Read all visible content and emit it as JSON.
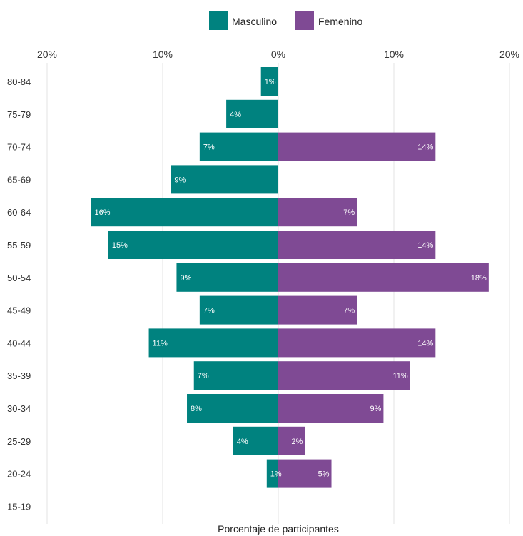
{
  "chart_data": {
    "type": "bar",
    "orientation": "horizontal-diverging",
    "xlabel": "Porcentaje de participantes",
    "xlim": [
      -20,
      20
    ],
    "x_ticks": [
      {
        "value": -20,
        "label": "20%"
      },
      {
        "value": -10,
        "label": "10%"
      },
      {
        "value": 0,
        "label": "0%"
      },
      {
        "value": 10,
        "label": "10%"
      },
      {
        "value": 20,
        "label": "20%"
      }
    ],
    "grid": "vertical",
    "legend_position": "top-center",
    "categories": [
      "80-84",
      "75-79",
      "70-74",
      "65-69",
      "60-64",
      "55-59",
      "50-54",
      "45-49",
      "40-44",
      "35-39",
      "30-34",
      "25-29",
      "20-24",
      "15-19"
    ],
    "series": [
      {
        "name": "Masculino",
        "color": "#00827f",
        "side": "left",
        "values": [
          1.5,
          4.5,
          6.8,
          9.3,
          16.2,
          14.7,
          8.8,
          6.8,
          11.2,
          7.3,
          7.9,
          3.9,
          1.0,
          null
        ],
        "labels": [
          "1%",
          "4%",
          "7%",
          "9%",
          "16%",
          "15%",
          "9%",
          "7%",
          "11%",
          "7%",
          "8%",
          "4%",
          "1%",
          ""
        ]
      },
      {
        "name": "Femenino",
        "color": "#7f4a94",
        "side": "right",
        "values": [
          null,
          null,
          13.6,
          null,
          6.8,
          13.6,
          18.2,
          6.8,
          13.6,
          11.4,
          9.1,
          2.3,
          4.6,
          null
        ],
        "labels": [
          "",
          "",
          "14%",
          "",
          "7%",
          "14%",
          "18%",
          "7%",
          "14%",
          "11%",
          "9%",
          "2%",
          "5%",
          ""
        ]
      }
    ]
  }
}
